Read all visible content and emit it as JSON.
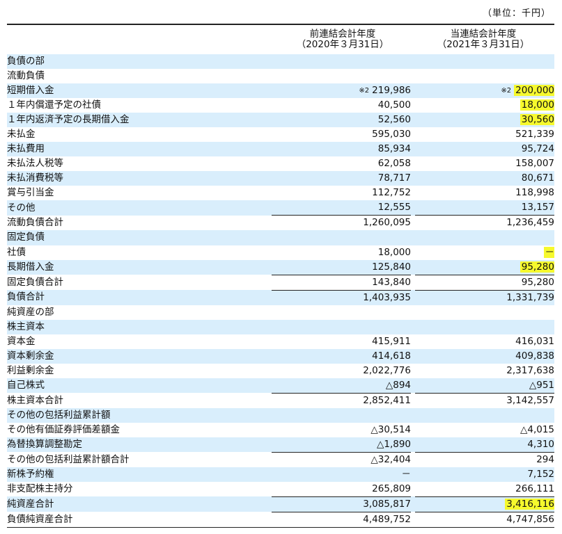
{
  "unit_label": "（単位：千円）",
  "columns": {
    "prev_line1": "前連結会計年度",
    "prev_line2": "（2020年３月31日）",
    "curr_line1": "当連結会計年度",
    "curr_line2": "（2021年３月31日）"
  },
  "rows": [
    {
      "label": "負債の部",
      "prev": "",
      "curr": "",
      "indent": 0
    },
    {
      "label": "流動負債",
      "prev": "",
      "curr": "",
      "indent": 1
    },
    {
      "label": "短期借入金",
      "prev": "219,986",
      "curr": "200,000",
      "indent": 2,
      "prev_note": "※2",
      "curr_note": "※2",
      "curr_highlight": true
    },
    {
      "label": "１年内償還予定の社債",
      "prev": "40,500",
      "curr": "18,000",
      "indent": 3,
      "curr_highlight": true
    },
    {
      "label": "１年内返済予定の長期借入金",
      "prev": "52,560",
      "curr": "30,560",
      "indent": 3,
      "curr_highlight": true
    },
    {
      "label": "未払金",
      "prev": "595,030",
      "curr": "521,339",
      "indent": 2
    },
    {
      "label": "未払費用",
      "prev": "85,934",
      "curr": "95,724",
      "indent": 2
    },
    {
      "label": "未払法人税等",
      "prev": "62,058",
      "curr": "158,007",
      "indent": 2
    },
    {
      "label": "未払消費税等",
      "prev": "78,717",
      "curr": "80,671",
      "indent": 2
    },
    {
      "label": "賞与引当金",
      "prev": "112,752",
      "curr": "118,998",
      "indent": 2
    },
    {
      "label": "その他",
      "prev": "12,555",
      "curr": "13,157",
      "indent": 2
    },
    {
      "label": "流動負債合計",
      "prev": "1,260,095",
      "curr": "1,236,459",
      "indent": 2,
      "sum": true
    },
    {
      "label": "固定負債",
      "prev": "",
      "curr": "",
      "indent": 1
    },
    {
      "label": "社債",
      "prev": "18,000",
      "curr": "－",
      "indent": 2,
      "curr_highlight": true
    },
    {
      "label": "長期借入金",
      "prev": "125,840",
      "curr": "95,280",
      "indent": 2,
      "curr_highlight": true
    },
    {
      "label": "固定負債合計",
      "prev": "143,840",
      "curr": "95,280",
      "indent": 2,
      "sum": true
    },
    {
      "label": "負債合計",
      "prev": "1,403,935",
      "curr": "1,331,739",
      "indent": 1,
      "sum": true
    },
    {
      "label": "純資産の部",
      "prev": "",
      "curr": "",
      "indent": 0
    },
    {
      "label": "株主資本",
      "prev": "",
      "curr": "",
      "indent": 1
    },
    {
      "label": "資本金",
      "prev": "415,911",
      "curr": "416,031",
      "indent": 2
    },
    {
      "label": "資本剰余金",
      "prev": "414,618",
      "curr": "409,838",
      "indent": 2
    },
    {
      "label": "利益剰余金",
      "prev": "2,022,776",
      "curr": "2,317,638",
      "indent": 2
    },
    {
      "label": "自己株式",
      "prev": "△894",
      "curr": "△951",
      "indent": 2
    },
    {
      "label": "株主資本合計",
      "prev": "2,852,411",
      "curr": "3,142,557",
      "indent": 2,
      "sum": true
    },
    {
      "label": "その他の包括利益累計額",
      "prev": "",
      "curr": "",
      "indent": 1
    },
    {
      "label": "その他有価証券評価差額金",
      "prev": "△30,514",
      "curr": "△4,015",
      "indent": 2
    },
    {
      "label": "為替換算調整勘定",
      "prev": "△1,890",
      "curr": "4,310",
      "indent": 2
    },
    {
      "label": "その他の包括利益累計額合計",
      "prev": "△32,404",
      "curr": "294",
      "indent": 2,
      "sum": true
    },
    {
      "label": "新株予約権",
      "prev": "－",
      "curr": "7,152",
      "indent": 1
    },
    {
      "label": "非支配株主持分",
      "prev": "265,809",
      "curr": "266,111",
      "indent": 1
    },
    {
      "label": "純資産合計",
      "prev": "3,085,817",
      "curr": "3,416,116",
      "indent": 1,
      "sum": true,
      "curr_highlight": true
    },
    {
      "label": "負債純資産合計",
      "prev": "4,489,752",
      "curr": "4,747,856",
      "indent": 0,
      "sum": true
    }
  ],
  "colors": {
    "stripe": "#d9eefc",
    "highlight": "#f6f92d",
    "rule": "#222222"
  }
}
